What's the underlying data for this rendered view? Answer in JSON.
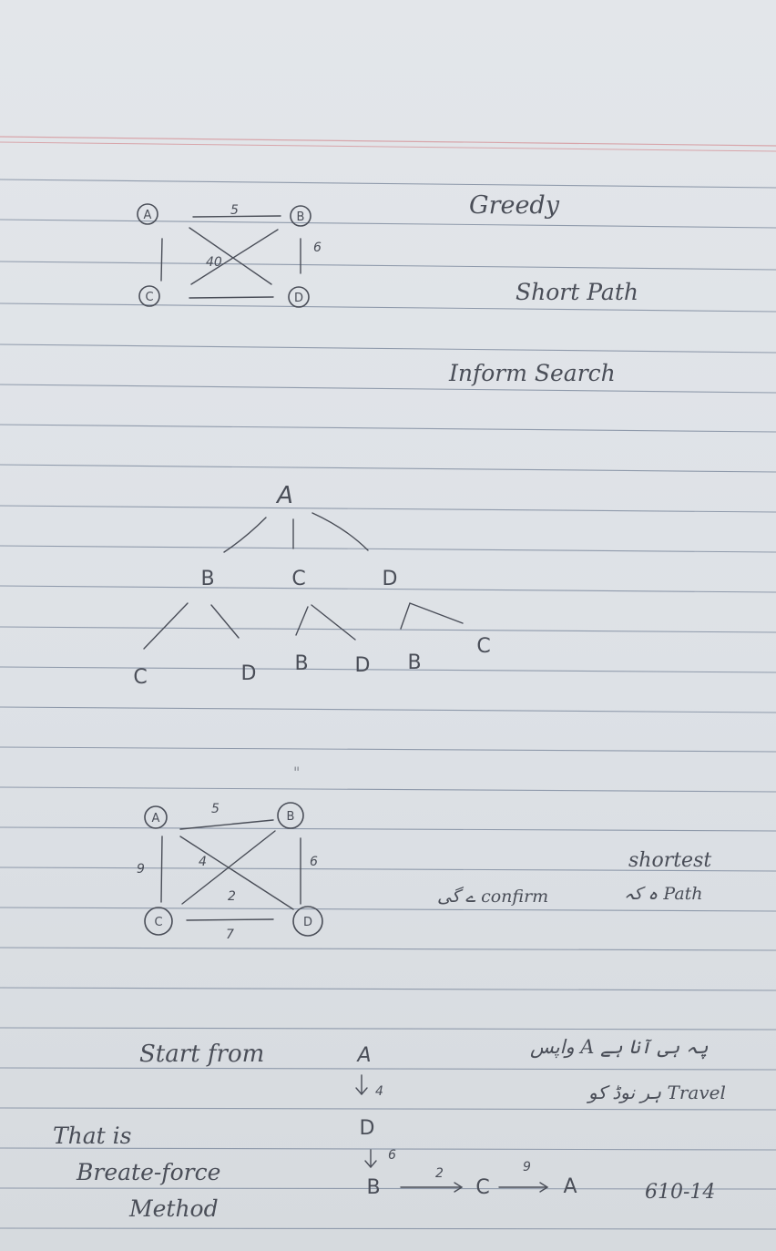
{
  "notes": {
    "top_right": [
      "Greedy",
      "Short Path",
      "Inform Search"
    ],
    "graph1": {
      "nodes": [
        "A",
        "B",
        "C",
        "D"
      ],
      "edge_labels": [
        "5",
        "6",
        "40"
      ]
    },
    "tree": {
      "root": "A",
      "level1": [
        "B",
        "C",
        "D"
      ],
      "level2": [
        "C",
        "D",
        "B",
        "D",
        "B",
        "C"
      ]
    },
    "tick_mark": "\"",
    "graph2": {
      "nodes": [
        "A",
        "B",
        "C",
        "D"
      ],
      "edge_labels": [
        "5",
        "9",
        "4",
        "6",
        "2",
        "7"
      ]
    },
    "middle_right": {
      "confirm_line": "ے گی confirm",
      "shortest": "shortest",
      "path_line": "ہ کہ Path"
    },
    "bottom": {
      "start_from": "Start from",
      "urdu_line1": "واپس A پہ ہی آنا ہے",
      "urdu_line2": "ہر نوڈ کو Travel",
      "this_is": "That is",
      "brute_force": "Breate-force",
      "method": "Method",
      "path_nodes": [
        "A",
        "D",
        "B",
        "C",
        "A"
      ],
      "path_weights": [
        "4",
        "6",
        "2",
        "9"
      ],
      "total": "610-14"
    }
  }
}
